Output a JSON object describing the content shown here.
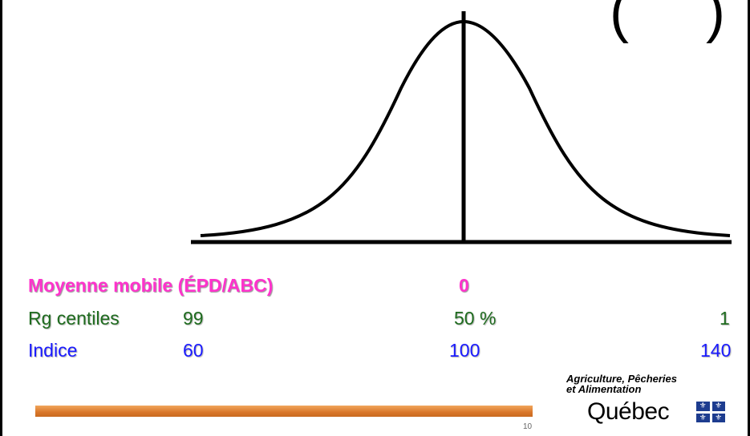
{
  "title_fragment": "(",
  "title_fragment_end": ")",
  "rows": {
    "moyenne": {
      "label": "Moyenne mobile (ÉPD/ABC)",
      "center": "0"
    },
    "centiles": {
      "label": "Rg centiles",
      "left": "99",
      "center": "50 %",
      "right": "1"
    },
    "indice": {
      "label": "Indice",
      "left": "60",
      "center": "100",
      "right": "140"
    }
  },
  "footer": {
    "page_number": "10",
    "logo_line1": "Agriculture, Pêcheries",
    "logo_line2": "et Alimentation",
    "logo_quebec": "Québec",
    "flag_symbol": "⚜"
  },
  "colors": {
    "magenta": "#ff33cc",
    "green": "#1e6b1e",
    "blue": "#1a1aff",
    "orange_bar": "#d9772a"
  }
}
